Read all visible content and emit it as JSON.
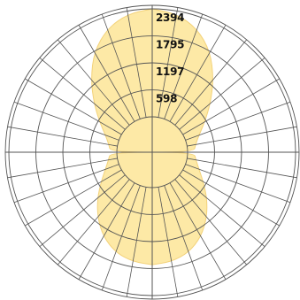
{
  "chart_data": {
    "type": "polar",
    "title": "",
    "radial_max": 2394,
    "radial_labels": [
      "2394",
      "1795",
      "1197",
      "598"
    ],
    "radial_ticks": [
      598,
      1197,
      1795,
      2394
    ],
    "angle_step_deg": 10,
    "series": [
      {
        "angles_deg": [
          0,
          10,
          20,
          30,
          40,
          50,
          60,
          70,
          80,
          90
        ],
        "upper_values": [
          2394,
          2330,
          2130,
          1790,
          1330,
          900,
          560,
          320,
          190,
          140
        ],
        "lower_values": [
          1710,
          1680,
          1580,
          1380,
          1100,
          800,
          520,
          320,
          200,
          140
        ]
      }
    ],
    "colors": {
      "fill": "#fde9a6",
      "edge": "#f3d27a",
      "grid": "#555555",
      "label": "#111111"
    }
  }
}
